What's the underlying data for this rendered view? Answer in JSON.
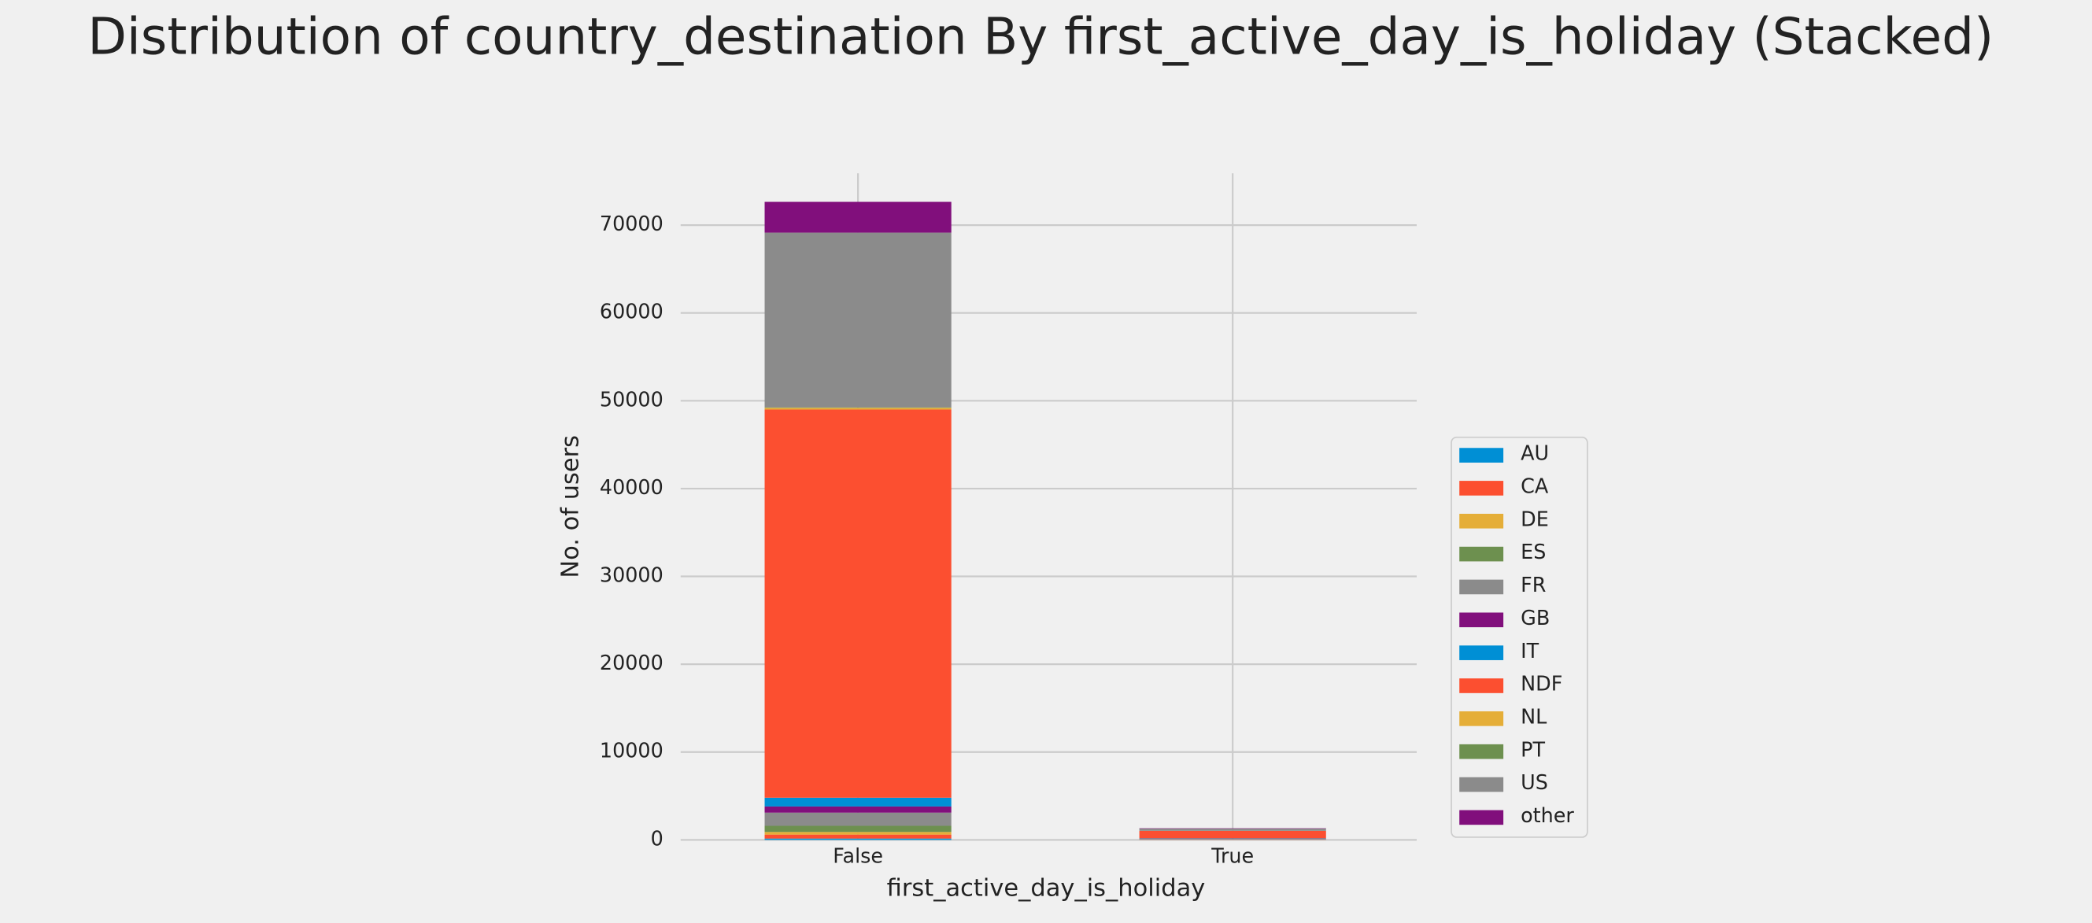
{
  "chart_data": {
    "type": "stacked_bar",
    "title": "Distribution of country_destination By first_active_day_is_holiday (Stacked)",
    "x_label": "first_active_day_is_holiday",
    "y_label": "No. of users",
    "categories": [
      "False",
      "True"
    ],
    "series": [
      {
        "name": "AU",
        "color": "#008fd5",
        "values": [
          150,
          5
        ]
      },
      {
        "name": "CA",
        "color": "#fc4f30",
        "values": [
          450,
          15
        ]
      },
      {
        "name": "DE",
        "color": "#e5ae38",
        "values": [
          300,
          10
        ]
      },
      {
        "name": "ES",
        "color": "#6d904f",
        "values": [
          700,
          25
        ]
      },
      {
        "name": "FR",
        "color": "#8b8b8b",
        "values": [
          1500,
          50
        ]
      },
      {
        "name": "GB",
        "color": "#810f7c",
        "values": [
          700,
          25
        ]
      },
      {
        "name": "IT",
        "color": "#008fd5",
        "values": [
          1000,
          40
        ]
      },
      {
        "name": "NDF",
        "color": "#fc4f30",
        "values": [
          44200,
          850
        ]
      },
      {
        "name": "NL",
        "color": "#e5ae38",
        "values": [
          200,
          10
        ]
      },
      {
        "name": "PT",
        "color": "#6d904f",
        "values": [
          50,
          2
        ]
      },
      {
        "name": "US",
        "color": "#8b8b8b",
        "values": [
          19900,
          250
        ]
      },
      {
        "name": "other",
        "color": "#810f7c",
        "values": [
          3500,
          40
        ]
      }
    ],
    "ylim": [
      0,
      75900
    ],
    "yticks": [
      0,
      10000,
      20000,
      30000,
      40000,
      50000,
      60000,
      70000
    ],
    "grid": true,
    "legend": "right"
  }
}
